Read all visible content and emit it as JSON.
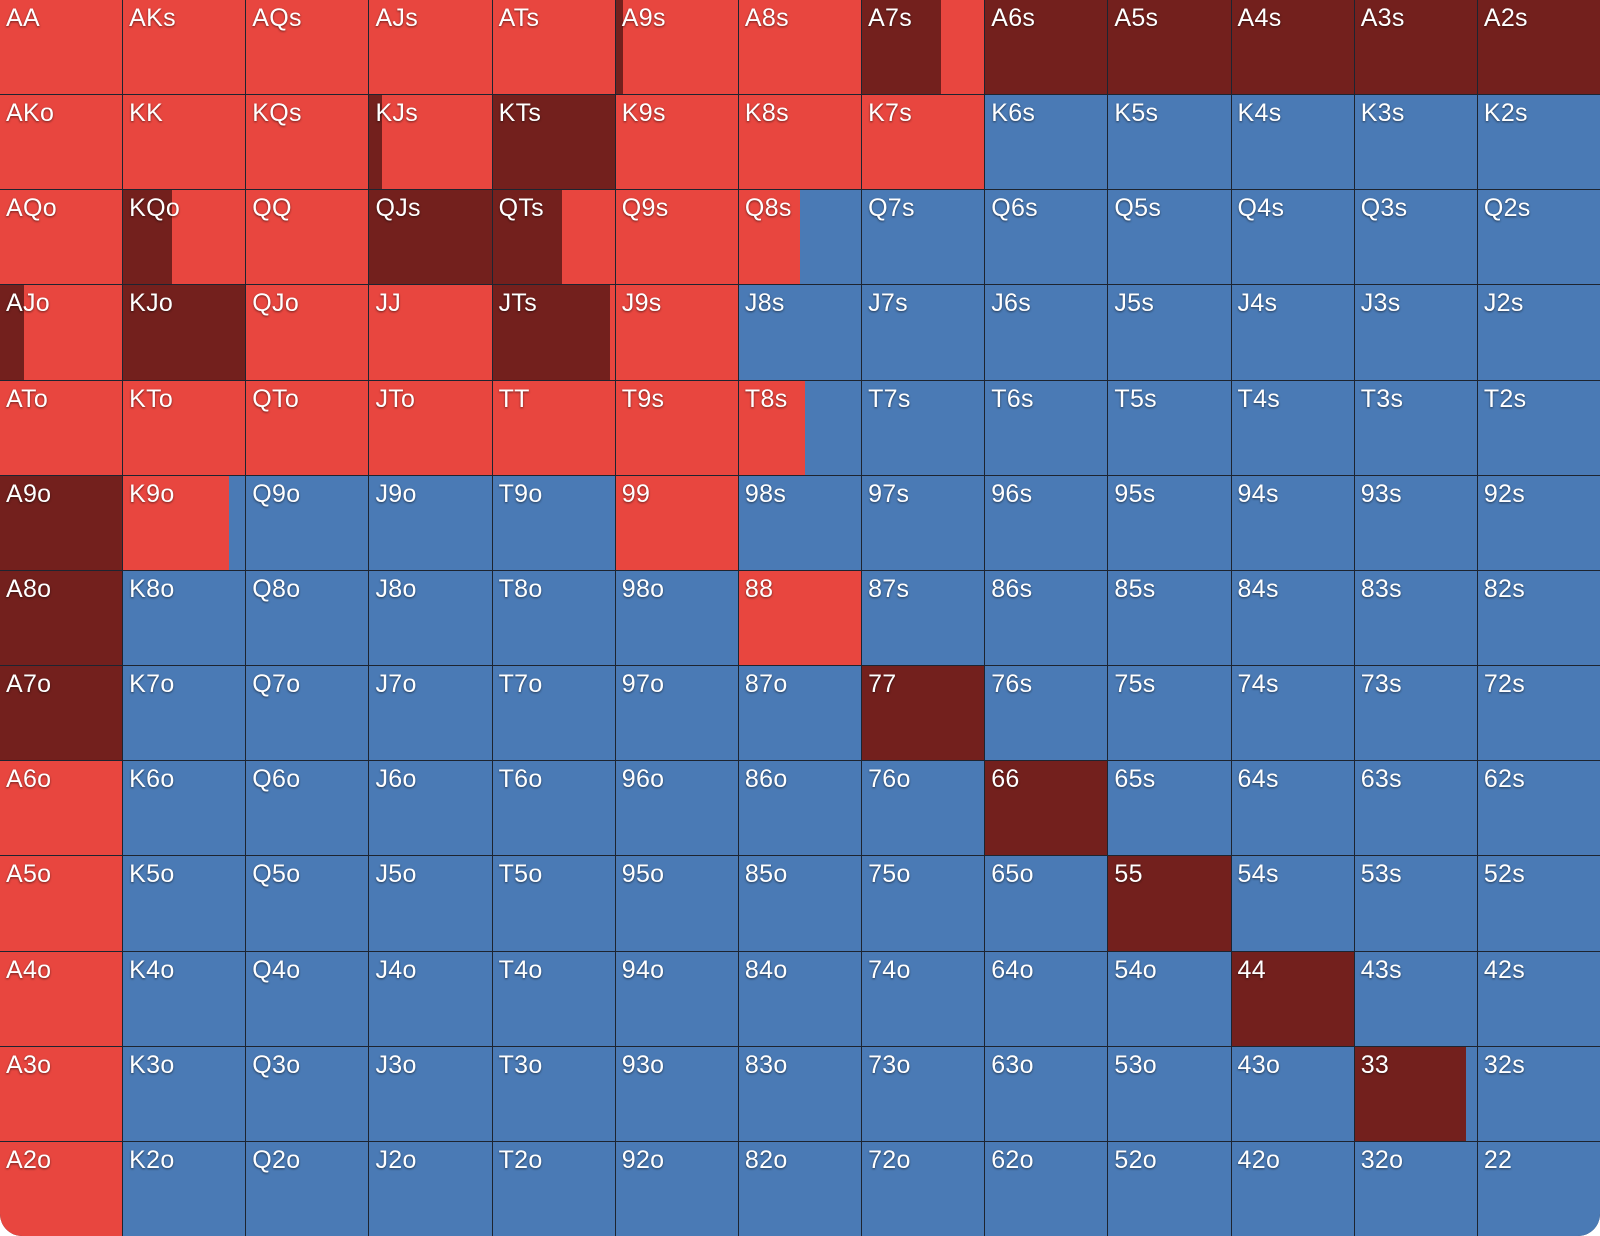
{
  "colors": {
    "raise": "#e8463f",
    "allin": "#73201d",
    "fold": "#4a7ab5"
  },
  "grid": {
    "rows": [
      [
        "AA",
        "AKs",
        "AQs",
        "AJs",
        "ATs",
        "A9s",
        "A8s",
        "A7s",
        "A6s",
        "A5s",
        "A4s",
        "A3s",
        "A2s"
      ],
      [
        "AKo",
        "KK",
        "KQs",
        "KJs",
        "KTs",
        "K9s",
        "K8s",
        "K7s",
        "K6s",
        "K5s",
        "K4s",
        "K3s",
        "K2s"
      ],
      [
        "AQo",
        "KQo",
        "QQ",
        "QJs",
        "QTs",
        "Q9s",
        "Q8s",
        "Q7s",
        "Q6s",
        "Q5s",
        "Q4s",
        "Q3s",
        "Q2s"
      ],
      [
        "AJo",
        "KJo",
        "QJo",
        "JJ",
        "JTs",
        "J9s",
        "J8s",
        "J7s",
        "J6s",
        "J5s",
        "J4s",
        "J3s",
        "J2s"
      ],
      [
        "ATo",
        "KTo",
        "QTo",
        "JTo",
        "TT",
        "T9s",
        "T8s",
        "T7s",
        "T6s",
        "T5s",
        "T4s",
        "T3s",
        "T2s"
      ],
      [
        "A9o",
        "K9o",
        "Q9o",
        "J9o",
        "T9o",
        "99",
        "98s",
        "97s",
        "96s",
        "95s",
        "94s",
        "93s",
        "92s"
      ],
      [
        "A8o",
        "K8o",
        "Q8o",
        "J8o",
        "T8o",
        "98o",
        "88",
        "87s",
        "86s",
        "85s",
        "84s",
        "83s",
        "82s"
      ],
      [
        "A7o",
        "K7o",
        "Q7o",
        "J7o",
        "T7o",
        "97o",
        "87o",
        "77",
        "76s",
        "75s",
        "74s",
        "73s",
        "72s"
      ],
      [
        "A6o",
        "K6o",
        "Q6o",
        "J6o",
        "T6o",
        "96o",
        "86o",
        "76o",
        "66",
        "65s",
        "64s",
        "63s",
        "62s"
      ],
      [
        "A5o",
        "K5o",
        "Q5o",
        "J5o",
        "T5o",
        "95o",
        "85o",
        "75o",
        "65o",
        "55",
        "54s",
        "53s",
        "52s"
      ],
      [
        "A4o",
        "K4o",
        "Q4o",
        "J4o",
        "T4o",
        "94o",
        "84o",
        "74o",
        "64o",
        "54o",
        "44",
        "43s",
        "42s"
      ],
      [
        "A3o",
        "K3o",
        "Q3o",
        "J3o",
        "T3o",
        "93o",
        "83o",
        "73o",
        "63o",
        "53o",
        "43o",
        "33",
        "32s"
      ],
      [
        "A2o",
        "K2o",
        "Q2o",
        "J2o",
        "T2o",
        "92o",
        "82o",
        "72o",
        "62o",
        "52o",
        "42o",
        "32o",
        "22"
      ]
    ],
    "mixes": {
      "AA": [
        [
          "raise",
          1
        ]
      ],
      "AKs": [
        [
          "raise",
          1
        ]
      ],
      "AQs": [
        [
          "raise",
          1
        ]
      ],
      "AJs": [
        [
          "raise",
          1
        ]
      ],
      "ATs": [
        [
          "raise",
          1
        ]
      ],
      "A9s": [
        [
          "allin",
          0.06
        ],
        [
          "raise",
          0.94
        ]
      ],
      "A8s": [
        [
          "raise",
          1
        ]
      ],
      "A7s": [
        [
          "allin",
          0.65
        ],
        [
          "raise",
          0.35
        ]
      ],
      "A6s": [
        [
          "allin",
          1
        ]
      ],
      "A5s": [
        [
          "allin",
          1
        ]
      ],
      "A4s": [
        [
          "allin",
          1
        ]
      ],
      "A3s": [
        [
          "allin",
          1
        ]
      ],
      "A2s": [
        [
          "allin",
          1
        ]
      ],
      "AKo": [
        [
          "raise",
          1
        ]
      ],
      "KK": [
        [
          "raise",
          1
        ]
      ],
      "KQs": [
        [
          "raise",
          1
        ]
      ],
      "KJs": [
        [
          "allin",
          0.1
        ],
        [
          "raise",
          0.9
        ]
      ],
      "KTs": [
        [
          "allin",
          1
        ]
      ],
      "K9s": [
        [
          "raise",
          1
        ]
      ],
      "K8s": [
        [
          "raise",
          1
        ]
      ],
      "K7s": [
        [
          "raise",
          1
        ]
      ],
      "AQo": [
        [
          "raise",
          1
        ]
      ],
      "KQo": [
        [
          "allin",
          0.4
        ],
        [
          "raise",
          0.6
        ]
      ],
      "QQ": [
        [
          "raise",
          1
        ]
      ],
      "QJs": [
        [
          "allin",
          1
        ]
      ],
      "QTs": [
        [
          "allin",
          0.57
        ],
        [
          "raise",
          0.43
        ]
      ],
      "Q9s": [
        [
          "raise",
          1
        ]
      ],
      "Q8s": [
        [
          "raise",
          0.5
        ],
        [
          "fold",
          0.5
        ]
      ],
      "AJo": [
        [
          "allin",
          0.2
        ],
        [
          "raise",
          0.8
        ]
      ],
      "KJo": [
        [
          "allin",
          1
        ]
      ],
      "QJo": [
        [
          "raise",
          1
        ]
      ],
      "JJ": [
        [
          "raise",
          1
        ]
      ],
      "JTs": [
        [
          "allin",
          0.96
        ],
        [
          "raise",
          0.04
        ]
      ],
      "J9s": [
        [
          "raise",
          1
        ]
      ],
      "ATo": [
        [
          "raise",
          1
        ]
      ],
      "KTo": [
        [
          "raise",
          1
        ]
      ],
      "QTo": [
        [
          "raise",
          1
        ]
      ],
      "JTo": [
        [
          "raise",
          1
        ]
      ],
      "TT": [
        [
          "raise",
          1
        ]
      ],
      "T9s": [
        [
          "raise",
          1
        ]
      ],
      "T8s": [
        [
          "raise",
          0.54
        ],
        [
          "fold",
          0.46
        ]
      ],
      "A9o": [
        [
          "allin",
          1
        ]
      ],
      "K9o": [
        [
          "raise",
          0.87
        ],
        [
          "fold",
          0.13
        ]
      ],
      "99": [
        [
          "raise",
          1
        ]
      ],
      "A8o": [
        [
          "allin",
          1
        ]
      ],
      "88": [
        [
          "raise",
          1
        ]
      ],
      "A7o": [
        [
          "allin",
          1
        ]
      ],
      "77": [
        [
          "allin",
          1
        ]
      ],
      "A6o": [
        [
          "raise",
          1
        ]
      ],
      "66": [
        [
          "allin",
          1
        ]
      ],
      "A5o": [
        [
          "raise",
          1
        ]
      ],
      "55": [
        [
          "allin",
          1
        ]
      ],
      "A4o": [
        [
          "raise",
          1
        ]
      ],
      "44": [
        [
          "allin",
          1
        ]
      ],
      "A3o": [
        [
          "raise",
          1
        ]
      ],
      "33": [
        [
          "allin",
          0.91
        ],
        [
          "fold",
          0.09
        ]
      ],
      "A2o": [
        [
          "raise",
          1
        ]
      ]
    },
    "default_mix": [
      [
        "fold",
        1
      ]
    ]
  }
}
